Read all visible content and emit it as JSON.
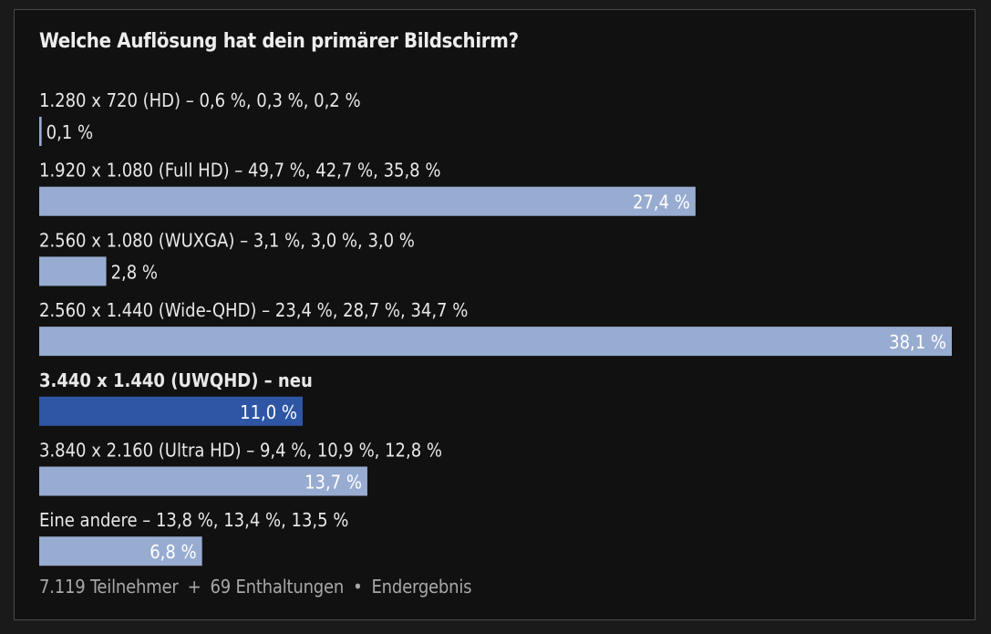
{
  "chart_data": {
    "type": "bar",
    "title": "Welche Auflösung hat dein primärer Bildschirm?",
    "orientation": "horizontal",
    "xlim": [
      0,
      38.1
    ],
    "items": [
      {
        "label": "1.280 x 720 (HD) – 0,6 %, 0,3 %, 0,2 %",
        "value": 0.1,
        "value_label": "0,1 %",
        "highlight": false
      },
      {
        "label": "1.920 x 1.080 (Full HD) – 49,7 %, 42,7 %, 35,8 %",
        "value": 27.4,
        "value_label": "27,4 %",
        "highlight": false
      },
      {
        "label": "2.560 x 1.080 (WUXGA) – 3,1 %, 3,0 %, 3,0 %",
        "value": 2.8,
        "value_label": "2,8 %",
        "highlight": false
      },
      {
        "label": "2.560 x 1.440 (Wide-QHD) – 23,4 %, 28,7 %, 34,7 %",
        "value": 38.1,
        "value_label": "38,1 %",
        "highlight": false
      },
      {
        "label": "3.440 x 1.440 (UWQHD) – neu",
        "value": 11.0,
        "value_label": "11,0 %",
        "highlight": true
      },
      {
        "label": "3.840 x 2.160 (Ultra HD) – 9,4 %, 10,9 %, 12,8 %",
        "value": 13.7,
        "value_label": "13,7 %",
        "highlight": false
      },
      {
        "label": "Eine andere – 13,8 %, 13,4 %, 13,5 %",
        "value": 6.8,
        "value_label": "6,8 %",
        "highlight": false
      }
    ],
    "colors": {
      "bar": "#98acd1",
      "bar_highlight": "#2e56a4",
      "text": "#e8e8e8",
      "value_text": "#ffffff"
    }
  },
  "footer": {
    "participants": "7.119 Teilnehmer",
    "separator1": "+",
    "abstentions": "69 Enthaltungen",
    "separator2": "•",
    "status": "Endergebnis"
  }
}
